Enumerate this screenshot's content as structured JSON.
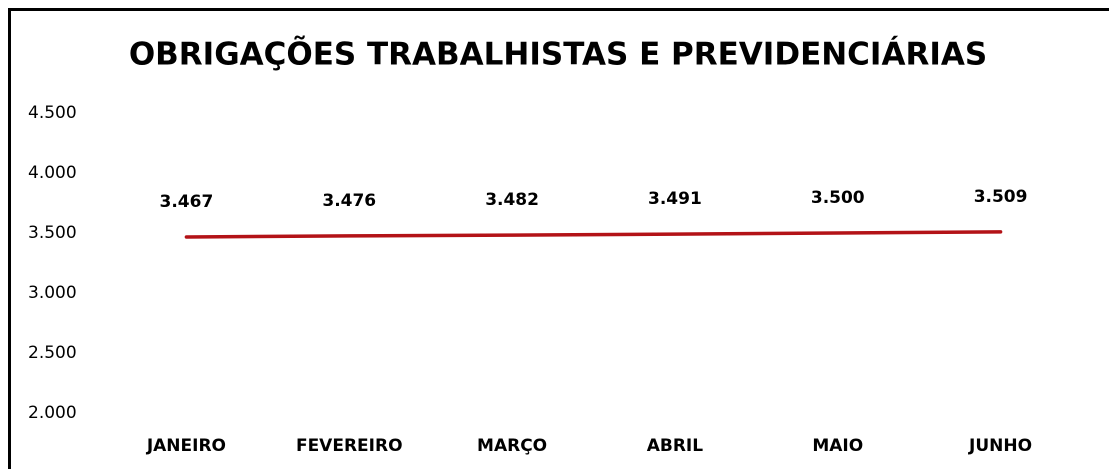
{
  "chart_data": {
    "type": "line",
    "title": "OBRIGAÇÕES TRABALHISTAS E PREVIDENCIÁRIAS",
    "categories": [
      "JANEIRO",
      "FEVEREIRO",
      "MARÇO",
      "ABRIL",
      "MAIO",
      "JUNHO"
    ],
    "values": [
      3467,
      3476,
      3482,
      3491,
      3500,
      3509
    ],
    "value_labels": [
      "3.467",
      "3.476",
      "3.482",
      "3.491",
      "3.500",
      "3.509"
    ],
    "color": "#b31217",
    "ylim": [
      2000,
      4500
    ],
    "yticks": [
      {
        "value": 2000,
        "label": "2.000"
      },
      {
        "value": 2500,
        "label": "2.500"
      },
      {
        "value": 3000,
        "label": "3.000"
      },
      {
        "value": 3500,
        "label": "3.500"
      },
      {
        "value": 4000,
        "label": "4.000"
      },
      {
        "value": 4500,
        "label": "4.500"
      }
    ],
    "grid": false
  }
}
